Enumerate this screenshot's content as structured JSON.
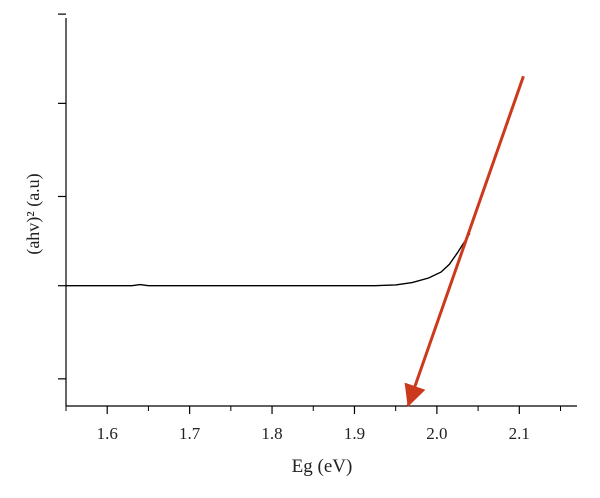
{
  "chart_data": {
    "type": "line",
    "xlabel": "Eg (eV)",
    "ylabel": "(ahv)² (a.u)",
    "xlim": [
      1.55,
      2.17
    ],
    "ylim": [
      0,
      100
    ],
    "x_ticks": [
      "1.6",
      "1.7",
      "1.8",
      "1.9",
      "2.0",
      "2.1"
    ],
    "x_tick_values": [
      1.6,
      1.7,
      1.8,
      1.9,
      2.0,
      2.1
    ],
    "y_tick_values": [
      7,
      31,
      54,
      78,
      101
    ],
    "grid": false,
    "series": [
      {
        "color": "#000000",
        "x": [
          1.55,
          1.63,
          1.64,
          1.65,
          1.7,
          1.8,
          1.9,
          1.925,
          1.95,
          1.97,
          1.99,
          2.005,
          2.015,
          2.025,
          2.04
        ],
        "y": [
          31.0,
          31.0,
          31.3,
          31.0,
          31.0,
          31.0,
          31.0,
          31.0,
          31.2,
          31.8,
          33.0,
          34.5,
          36.5,
          39.5,
          44.5
        ]
      }
    ],
    "annotations": [
      {
        "type": "arrow",
        "color": "#cc3a1e",
        "from": [
          2.105,
          85.0
        ],
        "to": [
          1.965,
          0
        ]
      }
    ]
  }
}
